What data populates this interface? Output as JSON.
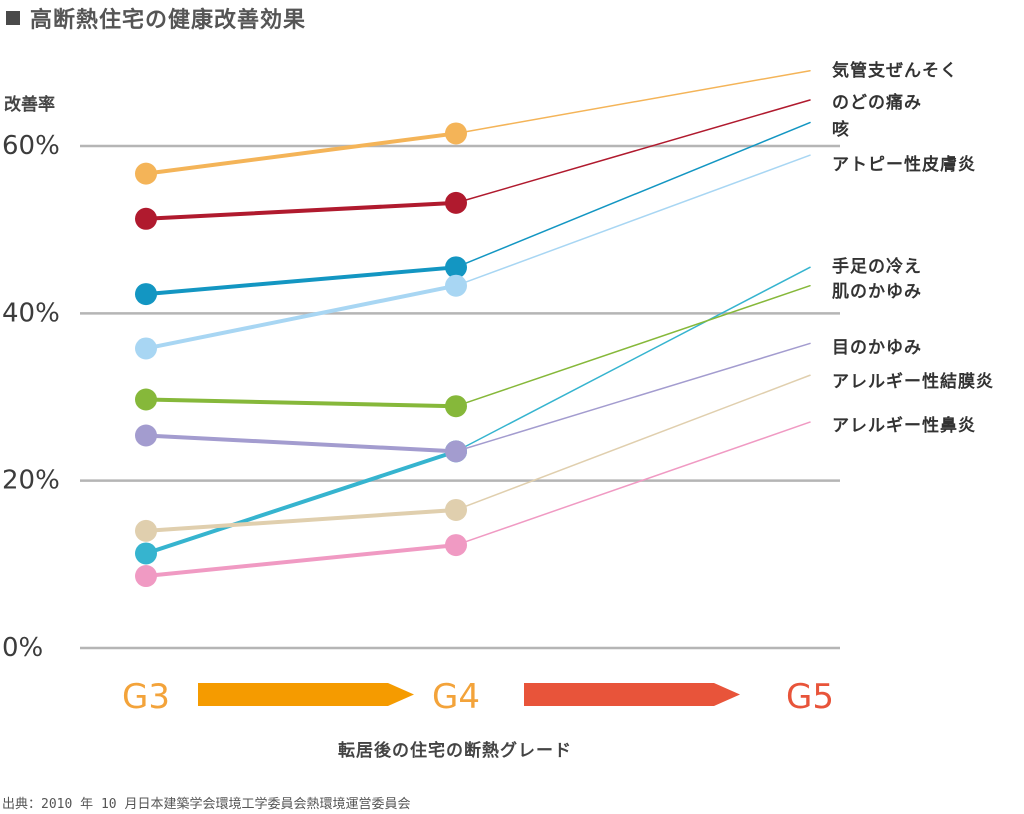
{
  "colors": {
    "grid": "#b5b5b5",
    "g3": "#f3a33a",
    "g4": "#f3a33a",
    "g5": "#e8543a",
    "arrow1": "#f59b00",
    "arrow2": "#e8543a"
  },
  "chart_data": {
    "type": "line",
    "title": "高断熱住宅の健康改善効果",
    "ylabel": "改善率",
    "xlabel": "転居後の住宅の断熱グレード",
    "source": "出典：2010 年 10 月日本建築学会環境工学委員会熱環境運営委員会",
    "ylim": [
      0,
      60
    ],
    "yticks": [
      "0%",
      "20%",
      "40%",
      "60%"
    ],
    "ytick_values": [
      0,
      20,
      40,
      60
    ],
    "grid": true,
    "legend_placement": "right",
    "categories": [
      "G3",
      "G4",
      "G5"
    ],
    "series": [
      {
        "name": "気管支ぜんそく",
        "color": "#f4b458",
        "values": [
          56.7,
          61.5,
          69.0
        ]
      },
      {
        "name": "のどの痛み",
        "color": "#b01a2e",
        "values": [
          51.3,
          53.2,
          65.5
        ]
      },
      {
        "name": "咳",
        "color": "#1396c2",
        "values": [
          42.3,
          45.5,
          62.8
        ]
      },
      {
        "name": "アトピー性皮膚炎",
        "color": "#a8d6f3",
        "values": [
          35.8,
          43.3,
          58.9
        ]
      },
      {
        "name": "手足の冷え",
        "color": "#36b4cf",
        "values": [
          11.3,
          23.5,
          45.5
        ]
      },
      {
        "name": "肌のかゆみ",
        "color": "#86b83a",
        "values": [
          29.7,
          28.9,
          43.3
        ]
      },
      {
        "name": "目のかゆみ",
        "color": "#a39ccf",
        "values": [
          25.4,
          23.5,
          36.4
        ]
      },
      {
        "name": "アレルギー性結膜炎",
        "color": "#e0cfae",
        "values": [
          14.0,
          16.5,
          32.6
        ]
      },
      {
        "name": "アレルギー性鼻炎",
        "color": "#f09ac3",
        "values": [
          8.6,
          12.3,
          27.0
        ]
      }
    ]
  }
}
